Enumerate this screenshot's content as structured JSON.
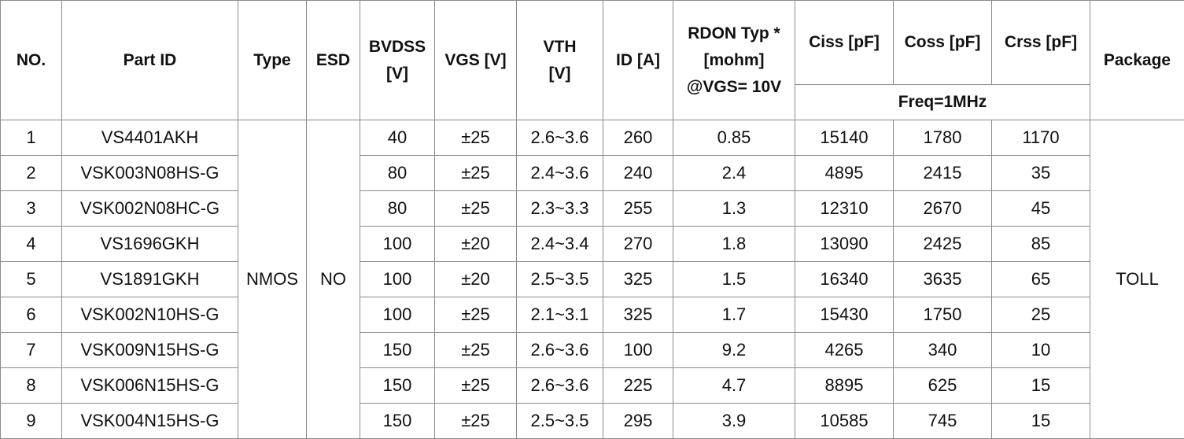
{
  "header": {
    "columns": [
      {
        "lines": [
          "NO."
        ]
      },
      {
        "lines": [
          "Part ID"
        ]
      },
      {
        "lines": [
          "Type"
        ]
      },
      {
        "lines": [
          "ESD"
        ]
      },
      {
        "lines": [
          "BVDSS",
          "[V]"
        ]
      },
      {
        "lines": [
          "VGS [V]"
        ]
      },
      {
        "lines": [
          "VTH",
          "[V]"
        ]
      },
      {
        "lines": [
          "ID [A]"
        ]
      },
      {
        "lines": [
          "RDON Typ *",
          "[mohm]",
          "@VGS= 10V"
        ]
      },
      {
        "lines": [
          "Ciss [pF]"
        ]
      },
      {
        "lines": [
          "Coss [pF]"
        ]
      },
      {
        "lines": [
          "Crss [pF]"
        ]
      },
      {
        "lines": [
          "Package"
        ]
      }
    ],
    "freq": "Freq=1MHz"
  },
  "table": {
    "type": "NMOS",
    "esd": "NO",
    "package": "TOLL",
    "rows": [
      [
        "1",
        "VS4401AKH",
        "40",
        "±25",
        "2.6~3.6",
        "260",
        "0.85",
        "15140",
        "1780",
        "1170"
      ],
      [
        "2",
        "VSK003N08HS-G",
        "80",
        "±25",
        "2.4~3.6",
        "240",
        "2.4",
        "4895",
        "2415",
        "35"
      ],
      [
        "3",
        "VSK002N08HC-G",
        "80",
        "±25",
        "2.3~3.3",
        "255",
        "1.3",
        "12310",
        "2670",
        "45"
      ],
      [
        "4",
        "VS1696GKH",
        "100",
        "±20",
        "2.4~3.4",
        "270",
        "1.8",
        "13090",
        "2425",
        "85"
      ],
      [
        "5",
        "VS1891GKH",
        "100",
        "±20",
        "2.5~3.5",
        "325",
        "1.5",
        "16340",
        "3635",
        "65"
      ],
      [
        "6",
        "VSK002N10HS-G",
        "100",
        "±25",
        "2.1~3.1",
        "325",
        "1.7",
        "15430",
        "1750",
        "25"
      ],
      [
        "7",
        "VSK009N15HS-G",
        "150",
        "±25",
        "2.6~3.6",
        "100",
        "9.2",
        "4265",
        "340",
        "10"
      ],
      [
        "8",
        "VSK006N15HS-G",
        "150",
        "±25",
        "2.6~3.6",
        "225",
        "4.7",
        "8895",
        "625",
        "15"
      ],
      [
        "9",
        "VSK004N15HS-G",
        "150",
        "±25",
        "2.5~3.5",
        "295",
        "3.9",
        "10585",
        "745",
        "15"
      ]
    ]
  }
}
